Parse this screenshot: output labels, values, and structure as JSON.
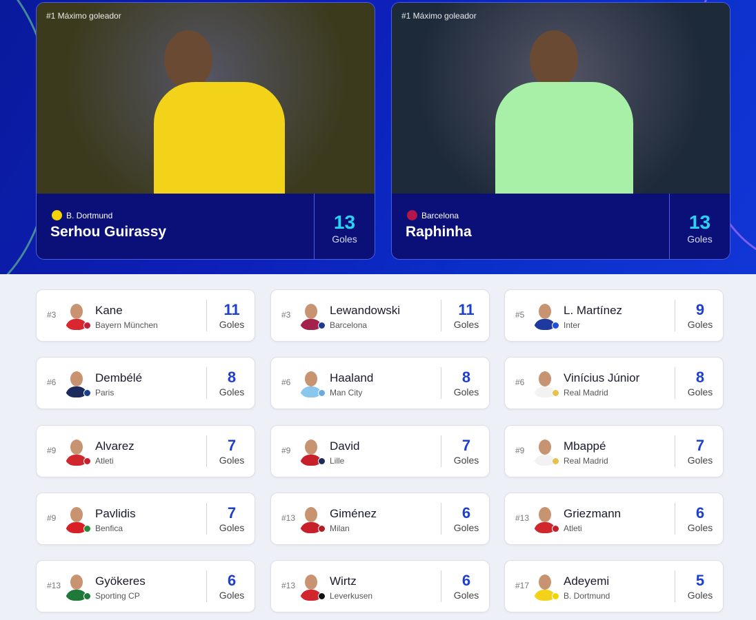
{
  "featured": [
    {
      "tag": "#1 Máximo goleador",
      "club": "B. Dortmund",
      "name": "Serhou Guirassy",
      "goals": "13",
      "goals_label": "Goles",
      "club_color": "#f5d300",
      "shirt": "#f3d21a",
      "bg": "#3b3a1c"
    },
    {
      "tag": "#1 Máximo goleador",
      "club": "Barcelona",
      "name": "Raphinha",
      "goals": "13",
      "goals_label": "Goles",
      "club_color": "#b3174a",
      "shirt": "#a8f0a8",
      "bg": "#1d2a3a"
    }
  ],
  "players": [
    {
      "rank": "#3",
      "name": "Kane",
      "team": "Bayern München",
      "goals": "11",
      "label": "Goles",
      "shirt": "#d9262f",
      "badge": "#c0203a"
    },
    {
      "rank": "#3",
      "name": "Lewandowski",
      "team": "Barcelona",
      "goals": "11",
      "label": "Goles",
      "shirt": "#a3224b",
      "badge": "#1d3c8f"
    },
    {
      "rank": "#5",
      "name": "L. Martínez",
      "team": "Inter",
      "goals": "9",
      "label": "Goles",
      "shirt": "#1f3a9e",
      "badge": "#1e4fd8"
    },
    {
      "rank": "#6",
      "name": "Dembélé",
      "team": "Paris",
      "goals": "8",
      "label": "Goles",
      "shirt": "#1b2b5e",
      "badge": "#1b3f8f"
    },
    {
      "rank": "#6",
      "name": "Haaland",
      "team": "Man City",
      "goals": "8",
      "label": "Goles",
      "shirt": "#8ac7ee",
      "badge": "#6cabdd"
    },
    {
      "rank": "#6",
      "name": "Vinícius Júnior",
      "team": "Real Madrid",
      "goals": "8",
      "label": "Goles",
      "shirt": "#f2f2f2",
      "badge": "#e7c14b"
    },
    {
      "rank": "#9",
      "name": "Alvarez",
      "team": "Atleti",
      "goals": "7",
      "label": "Goles",
      "shirt": "#d0262d",
      "badge": "#c8202a"
    },
    {
      "rank": "#9",
      "name": "David",
      "team": "Lille",
      "goals": "7",
      "label": "Goles",
      "shirt": "#c8202a",
      "badge": "#1b2b5e"
    },
    {
      "rank": "#9",
      "name": "Mbappé",
      "team": "Real Madrid",
      "goals": "7",
      "label": "Goles",
      "shirt": "#f2f2f2",
      "badge": "#e7c14b"
    },
    {
      "rank": "#9",
      "name": "Pavlidis",
      "team": "Benfica",
      "goals": "7",
      "label": "Goles",
      "shirt": "#d81f26",
      "badge": "#2a8a3a"
    },
    {
      "rank": "#13",
      "name": "Giménez",
      "team": "Milan",
      "goals": "6",
      "label": "Goles",
      "shirt": "#c8202a",
      "badge": "#b01e25"
    },
    {
      "rank": "#13",
      "name": "Griezmann",
      "team": "Atleti",
      "goals": "6",
      "label": "Goles",
      "shirt": "#d0262d",
      "badge": "#c8202a"
    },
    {
      "rank": "#13",
      "name": "Gyökeres",
      "team": "Sporting CP",
      "goals": "6",
      "label": "Goles",
      "shirt": "#1f7a3a",
      "badge": "#1f7a3a"
    },
    {
      "rank": "#13",
      "name": "Wirtz",
      "team": "Leverkusen",
      "goals": "6",
      "label": "Goles",
      "shirt": "#d0262d",
      "badge": "#111111"
    },
    {
      "rank": "#17",
      "name": "Adeyemi",
      "team": "B. Dortmund",
      "goals": "5",
      "label": "Goles",
      "shirt": "#f3d21a",
      "badge": "#f5d300"
    }
  ]
}
